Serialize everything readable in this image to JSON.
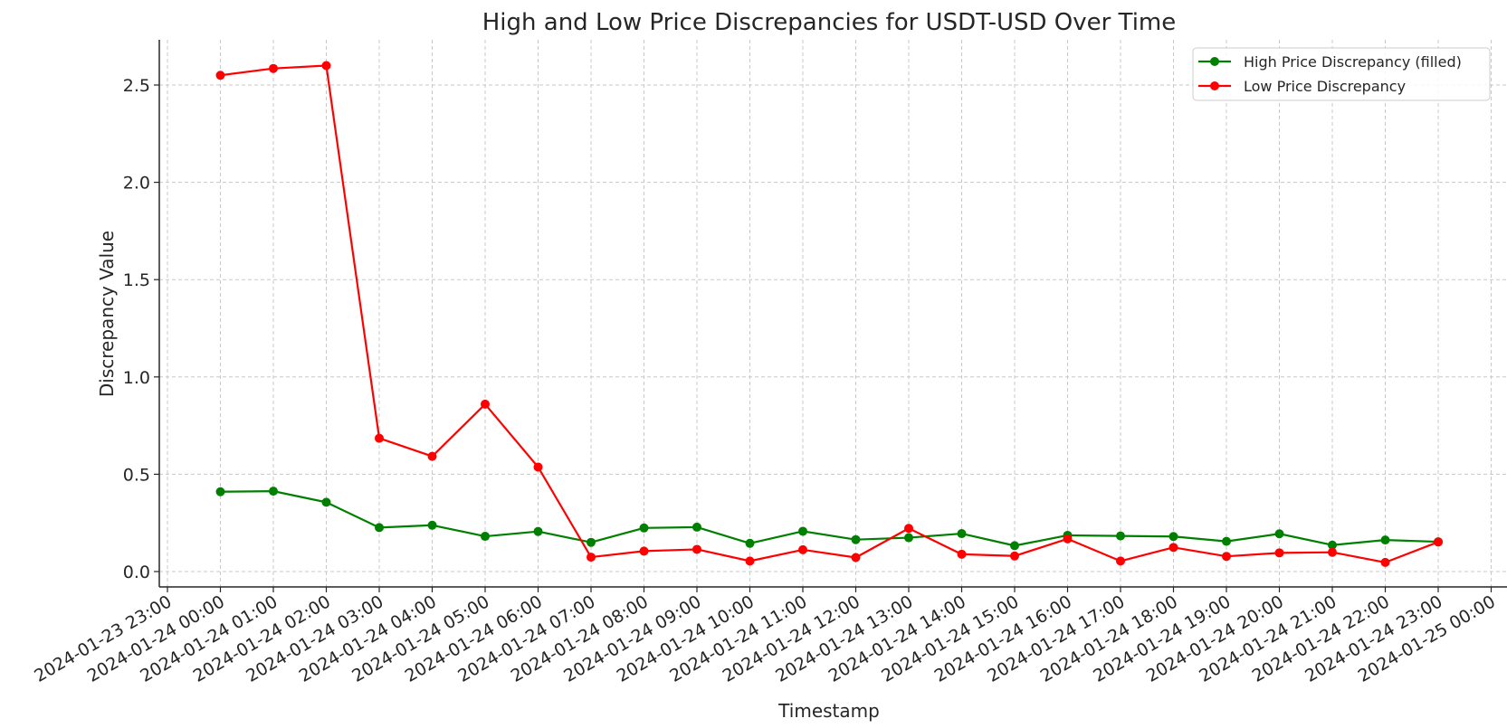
{
  "chart_data": {
    "type": "line",
    "title": "High and Low Price Discrepancies for USDT-USD Over Time",
    "xlabel": "Timestamp",
    "ylabel": "Discrepancy Value",
    "x_ticks": [
      "2024-01-23 23:00",
      "2024-01-24 00:00",
      "2024-01-24 01:00",
      "2024-01-24 02:00",
      "2024-01-24 03:00",
      "2024-01-24 04:00",
      "2024-01-24 05:00",
      "2024-01-24 06:00",
      "2024-01-24 07:00",
      "2024-01-24 08:00",
      "2024-01-24 09:00",
      "2024-01-24 10:00",
      "2024-01-24 11:00",
      "2024-01-24 12:00",
      "2024-01-24 13:00",
      "2024-01-24 14:00",
      "2024-01-24 15:00",
      "2024-01-24 16:00",
      "2024-01-24 17:00",
      "2024-01-24 18:00",
      "2024-01-24 19:00",
      "2024-01-24 20:00",
      "2024-01-24 21:00",
      "2024-01-24 22:00",
      "2024-01-24 23:00",
      "2024-01-25 00:00"
    ],
    "x": [
      "2024-01-24 00:00",
      "2024-01-24 01:00",
      "2024-01-24 02:00",
      "2024-01-24 03:00",
      "2024-01-24 04:00",
      "2024-01-24 05:00",
      "2024-01-24 06:00",
      "2024-01-24 07:00",
      "2024-01-24 08:00",
      "2024-01-24 09:00",
      "2024-01-24 10:00",
      "2024-01-24 11:00",
      "2024-01-24 12:00",
      "2024-01-24 13:00",
      "2024-01-24 14:00",
      "2024-01-24 15:00",
      "2024-01-24 16:00",
      "2024-01-24 17:00",
      "2024-01-24 18:00",
      "2024-01-24 19:00",
      "2024-01-24 20:00",
      "2024-01-24 21:00",
      "2024-01-24 22:00",
      "2024-01-24 23:00"
    ],
    "y_ticks": [
      "0.0",
      "0.5",
      "1.0",
      "1.5",
      "2.0",
      "2.5"
    ],
    "ylim": [
      -0.08,
      2.72
    ],
    "grid": true,
    "legend_position": "top-right",
    "series": [
      {
        "name": "High Price Discrepancy (filled)",
        "color": "#008000",
        "values": [
          0.41,
          0.413,
          0.356,
          0.226,
          0.238,
          0.181,
          0.206,
          0.15,
          0.224,
          0.228,
          0.145,
          0.207,
          0.164,
          0.174,
          0.195,
          0.133,
          0.186,
          0.183,
          0.18,
          0.155,
          0.194,
          0.136,
          0.162,
          0.153
        ]
      },
      {
        "name": "Low Price Discrepancy",
        "color": "#ff0000",
        "values": [
          2.55,
          2.585,
          2.6,
          0.685,
          0.592,
          0.86,
          0.537,
          0.074,
          0.105,
          0.114,
          0.054,
          0.112,
          0.072,
          0.222,
          0.089,
          0.08,
          0.168,
          0.054,
          0.124,
          0.078,
          0.096,
          0.099,
          0.047,
          0.152
        ]
      }
    ]
  }
}
